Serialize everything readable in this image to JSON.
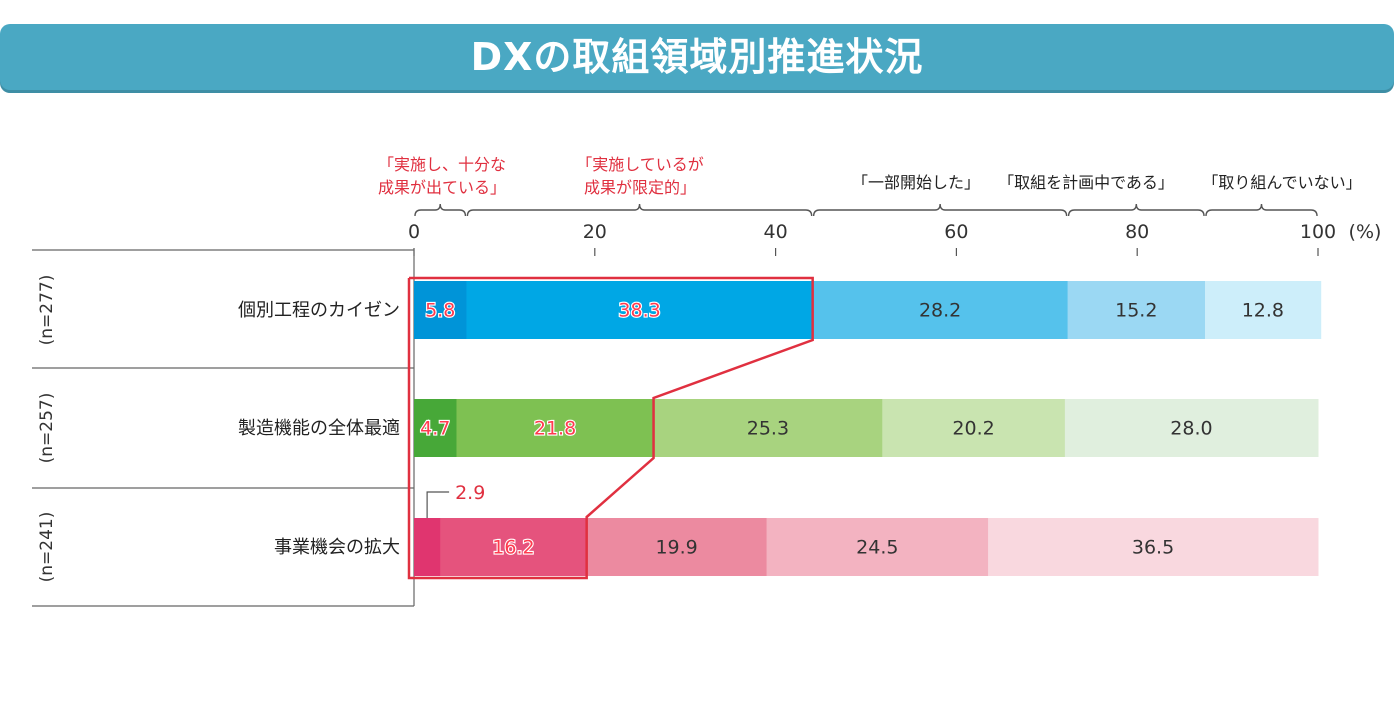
{
  "title": "DXの取組領域別推進状況",
  "legend": {
    "item1_line1": "「実施し、十分な",
    "item1_line2": "成果が出ている」",
    "item2_line1": "「実施しているが",
    "item2_line2": "成果が限定的」",
    "item3": "「一部開始した」",
    "item4": "「取組を計画中である」",
    "item5": "「取り組んでいない」"
  },
  "axis": {
    "unit": "(%)"
  },
  "chart_data": {
    "type": "bar",
    "stacked": true,
    "orientation": "horizontal",
    "title": "DXの取組領域別推進状況",
    "xlim": [
      0,
      100
    ],
    "xticks": [
      0,
      20,
      40,
      60,
      80,
      100
    ],
    "x_unit": "(%)",
    "legend_position": "top",
    "series_names": [
      "「実施し、十分な成果が出ている」",
      "「実施しているが成果が限定的」",
      "「一部開始した」",
      "「取組を計画中である」",
      "「取り組んでいない」"
    ],
    "categories": [
      {
        "label": "個別工程のカイゼン",
        "n": "(n=277)",
        "values": [
          5.8,
          38.3,
          28.2,
          15.2,
          12.8
        ],
        "colors": [
          "#0094d8",
          "#00a7e5",
          "#55c2ec",
          "#9bd8f3",
          "#cdeefa"
        ]
      },
      {
        "label": "製造機能の全体最適",
        "n": "(n=257)",
        "values": [
          4.7,
          21.8,
          25.3,
          20.2,
          28.0
        ],
        "colors": [
          "#47a838",
          "#7ec152",
          "#a8d37f",
          "#c9e4b0",
          "#e0efde"
        ]
      },
      {
        "label": "事業機会の拡大",
        "n": "(n=241)",
        "values": [
          2.9,
          16.2,
          19.9,
          24.5,
          36.5
        ],
        "colors": [
          "#e0356f",
          "#e5537d",
          "#ec8aa0",
          "#f3b3c1",
          "#f9d8df"
        ]
      }
    ],
    "highlight_color": "#e03040"
  }
}
